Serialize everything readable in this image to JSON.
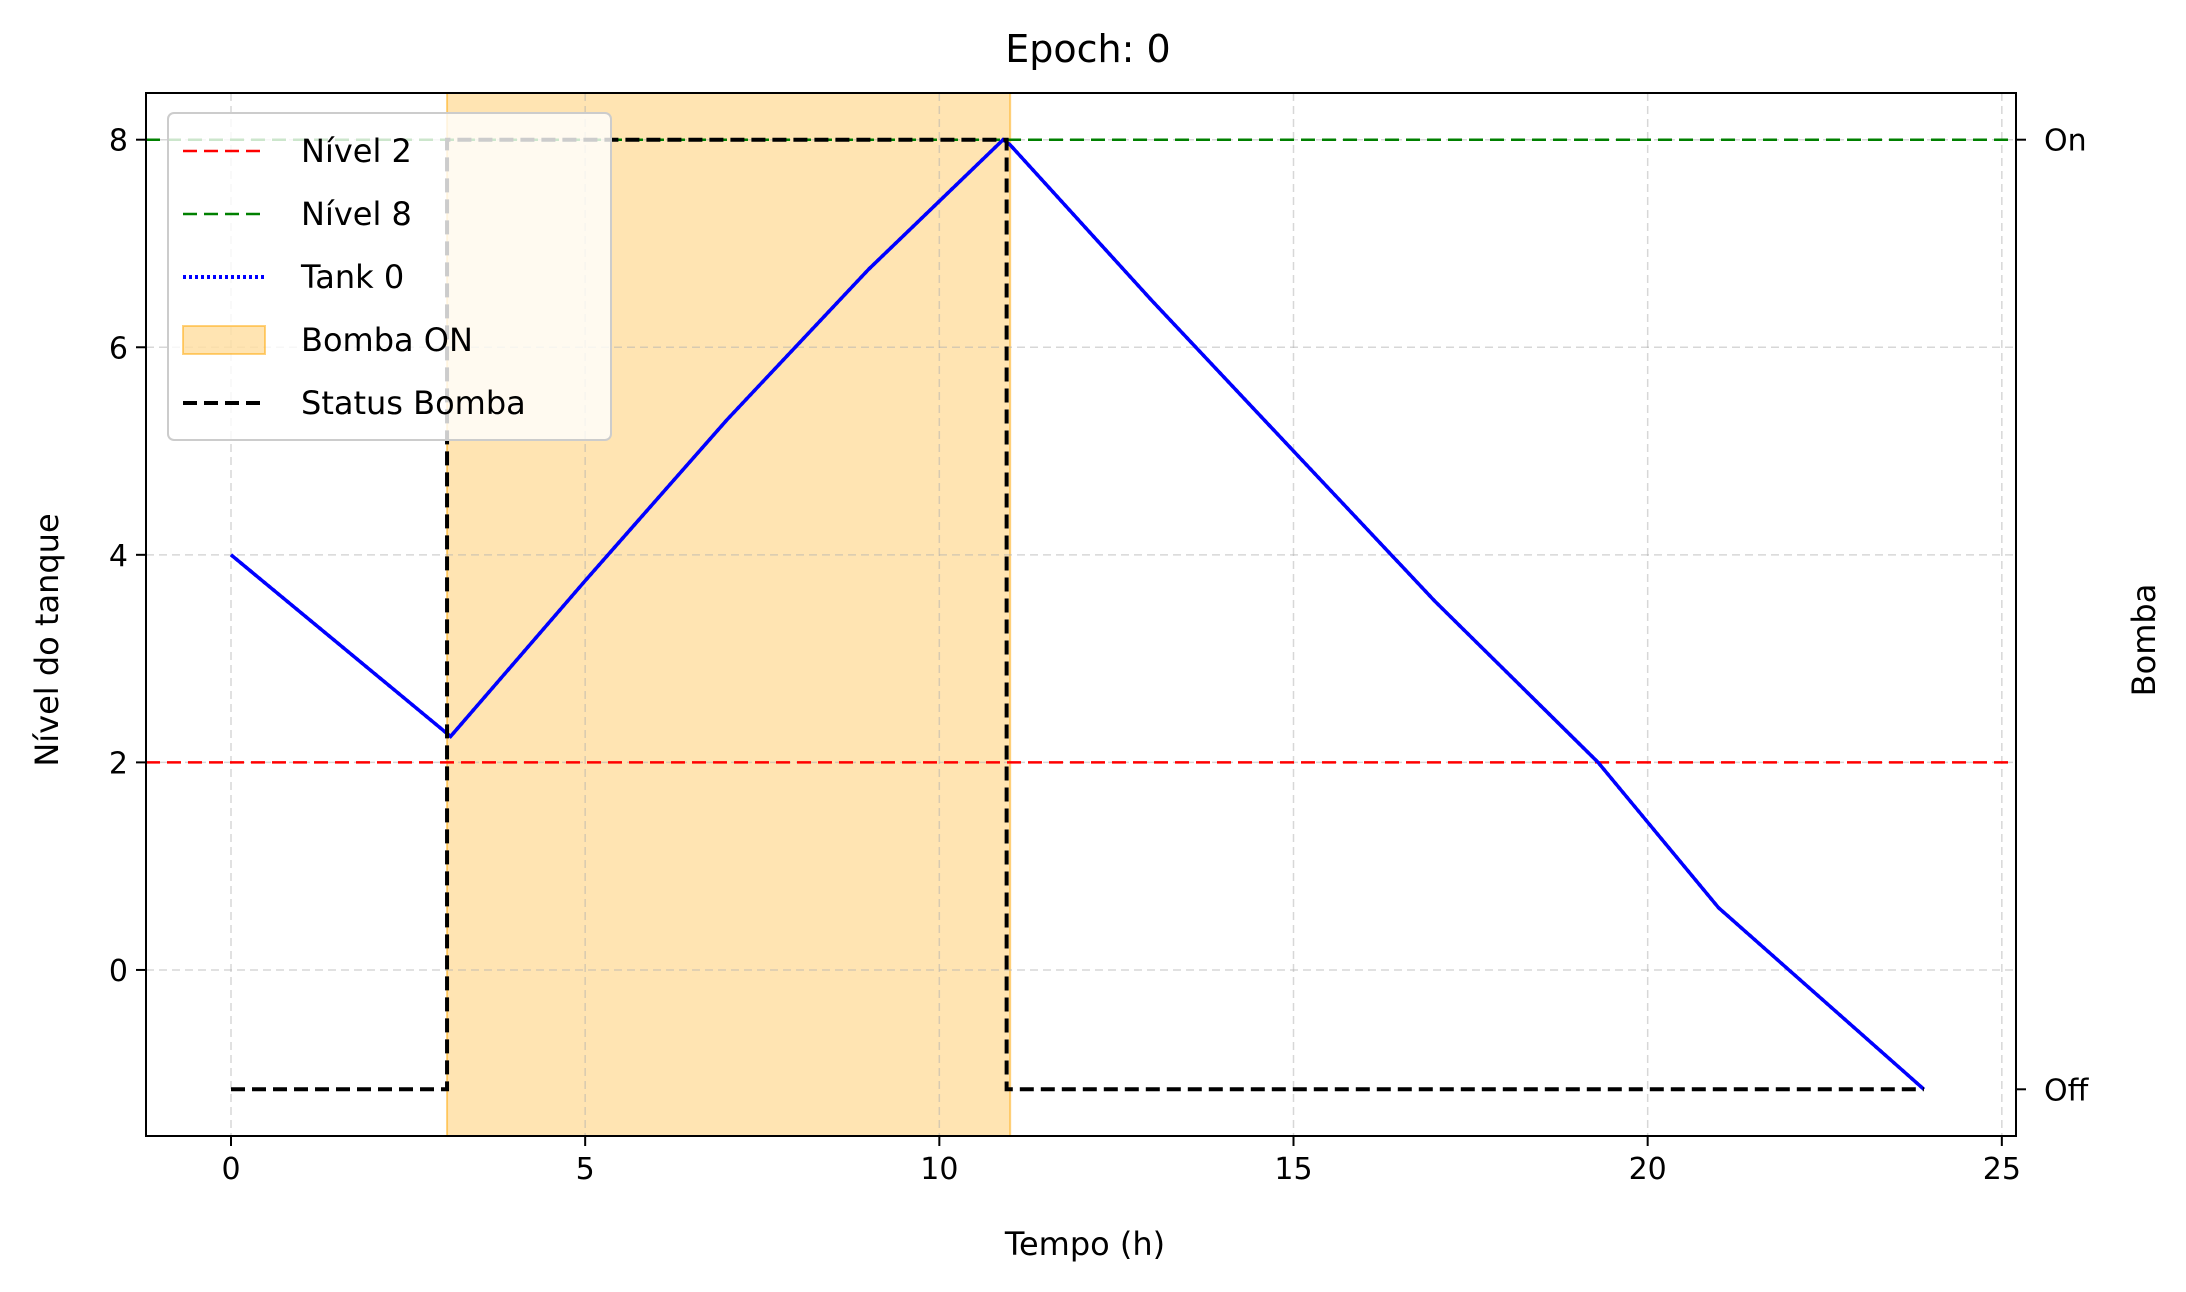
{
  "chart_data": {
    "type": "line",
    "title": "Epoch: 0",
    "xlabel": "Tempo (h)",
    "ylabel": "Nível do tanque",
    "y2label": "Bomba",
    "xlim": [
      -1.2,
      25.2
    ],
    "ylim": [
      -1.6,
      8.45
    ],
    "xticks": [
      0,
      5,
      10,
      15,
      20,
      25
    ],
    "yticks": [
      0,
      2,
      4,
      6,
      8
    ],
    "y2ticks": [
      {
        "value": 8,
        "label": "On"
      },
      {
        "value": -1.15,
        "label": "Off"
      }
    ],
    "grid": true,
    "legend_position": "top-left",
    "series": [
      {
        "name": "Nível 2",
        "kind": "hline",
        "y": 2,
        "color": "#ff0000",
        "style": "dashed"
      },
      {
        "name": "Nível 8",
        "kind": "hline",
        "y": 8,
        "color": "#008000",
        "style": "dashed"
      },
      {
        "name": "Tank 0",
        "kind": "line",
        "color": "#0000ff",
        "style": "dotted",
        "x": [
          0,
          3.1,
          5,
          7,
          9,
          10.9,
          11.0,
          13,
          15,
          17,
          19.3,
          21,
          23.9
        ],
        "y": [
          4.0,
          2.25,
          3.75,
          5.3,
          6.75,
          8.0,
          7.95,
          6.45,
          5.0,
          3.55,
          2.0,
          0.6,
          -1.15
        ]
      },
      {
        "name": "Bomba ON",
        "kind": "span",
        "x0": 3.05,
        "x1": 11.0,
        "color": "#ffa500"
      },
      {
        "name": "Status Bomba",
        "kind": "step",
        "color": "#000000",
        "style": "dashed",
        "x": [
          0,
          3.05,
          3.05,
          10.95,
          10.95,
          23.9
        ],
        "y": [
          -1.15,
          -1.15,
          8.0,
          8.0,
          -1.15,
          -1.15
        ]
      }
    ]
  }
}
